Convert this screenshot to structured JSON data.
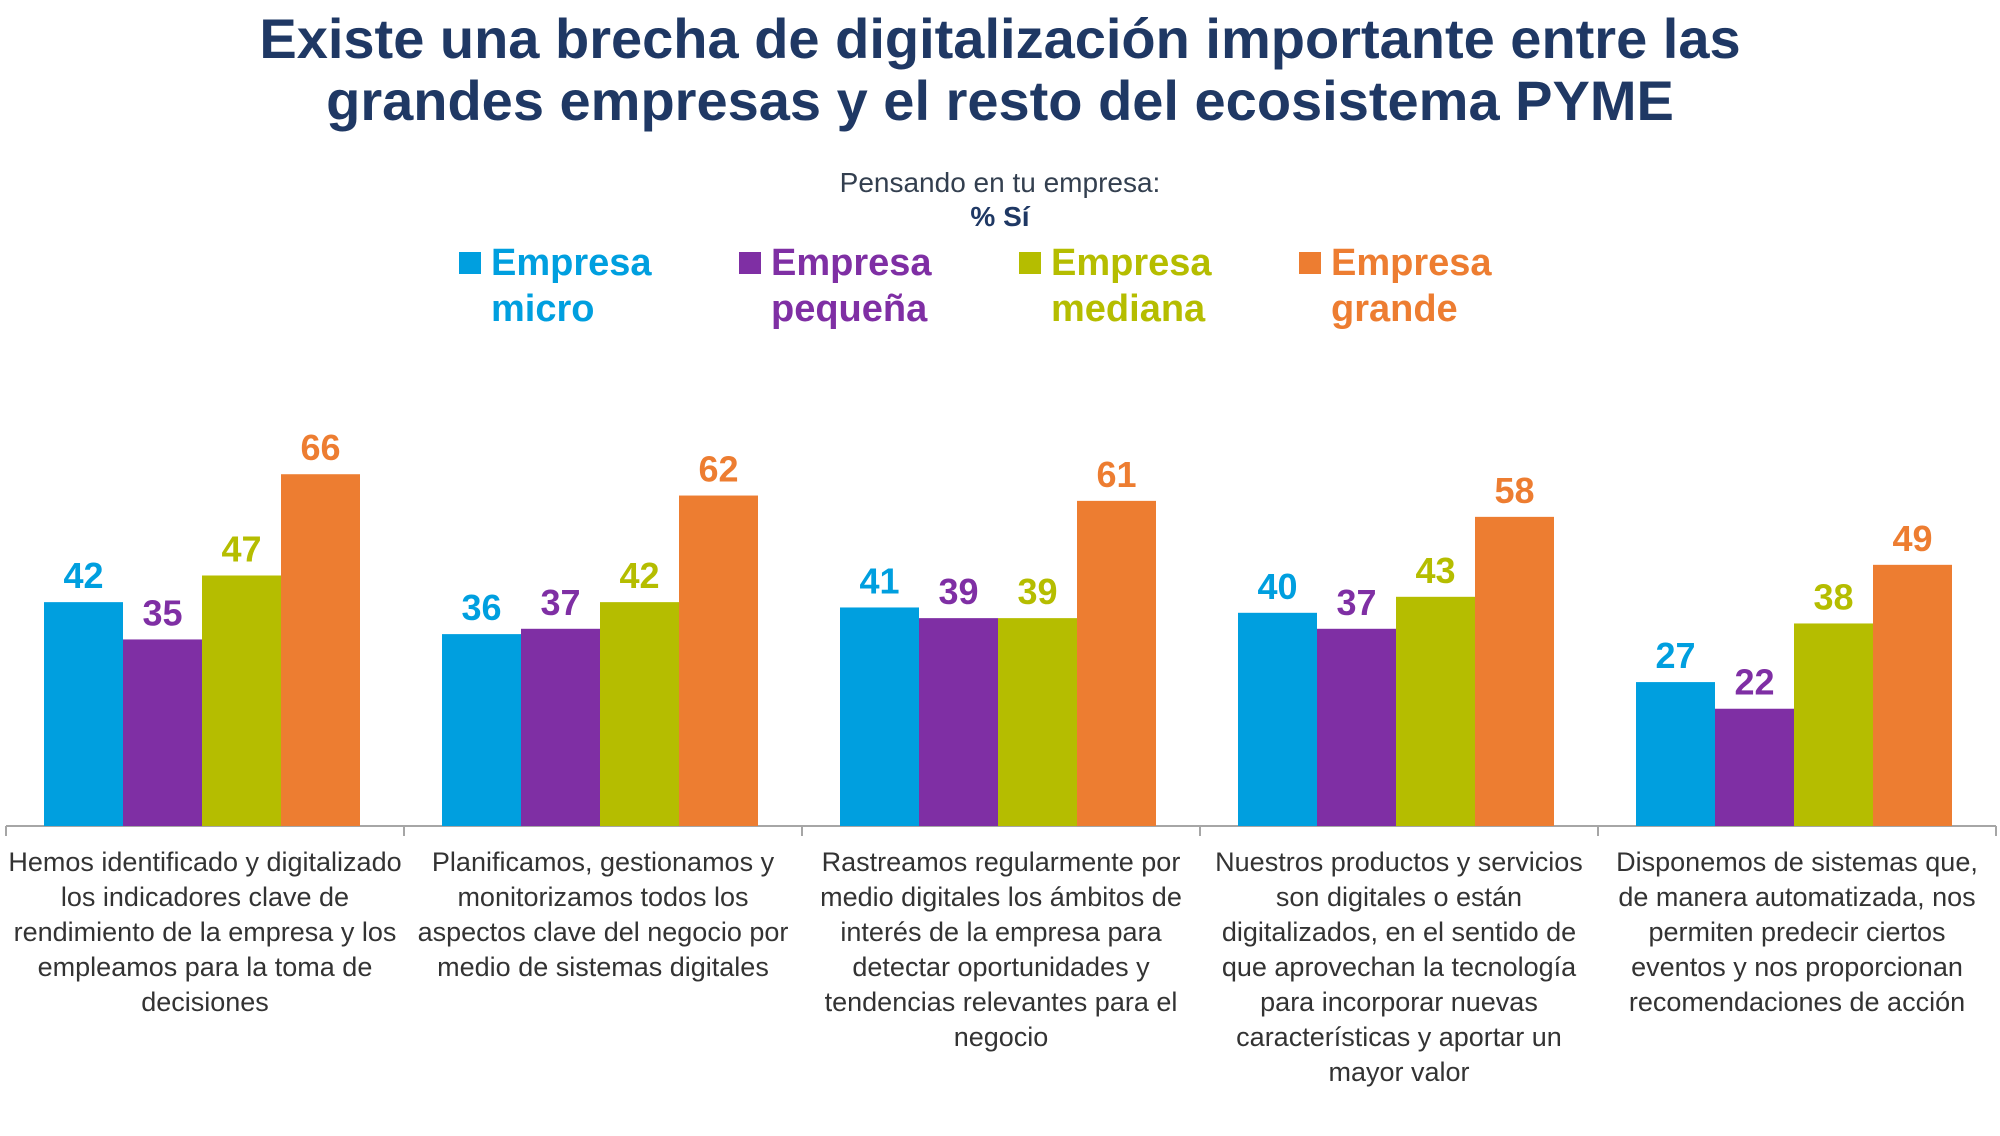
{
  "title_line1": "Existe una brecha de digitalización importante entre las",
  "title_line2": "grandes empresas y el resto del ecosistema PYME",
  "chart_data": {
    "type": "bar",
    "title": "Existe una brecha de digitalización importante entre las grandes empresas y el resto del ecosistema PYME",
    "subtitle": "Pensando en tu empresa:",
    "ylabel": "% Sí",
    "ylim": [
      0,
      70
    ],
    "grid": false,
    "legend_position": "top",
    "categories": [
      "Hemos identificado y digitalizado los indicadores clave de rendimiento de la empresa y los empleamos para la toma de decisiones",
      "Planificamos, gestionamos y monitorizamos todos los aspectos clave del negocio por medio de sistemas digitales",
      "Rastreamos regularmente por medio digitales los ámbitos de interés de la empresa para detectar oportunidades y tendencias relevantes para el negocio",
      "Nuestros productos y servicios son digitales o están digitalizados, en el sentido de que aprovechan la tecnología para incorporar nuevas características y aportar un mayor valor",
      "Disponemos de sistemas que, de manera automatizada, nos permiten predecir ciertos eventos y nos proporcionan recomendaciones de acción"
    ],
    "series": [
      {
        "name": "Empresa micro",
        "color": "#009fdf",
        "values": [
          42,
          36,
          41,
          40,
          27
        ]
      },
      {
        "name": "Empresa pequeña",
        "color": "#7f2fa4",
        "values": [
          35,
          37,
          39,
          37,
          22
        ]
      },
      {
        "name": "Empresa mediana",
        "color": "#b5bd00",
        "values": [
          47,
          42,
          39,
          43,
          38
        ]
      },
      {
        "name": "Empresa grande",
        "color": "#ed7d31",
        "values": [
          66,
          62,
          61,
          58,
          49
        ]
      }
    ]
  },
  "legend": [
    {
      "line1": "Empresa",
      "line2": "micro"
    },
    {
      "line1": "Empresa",
      "line2": "pequeña"
    },
    {
      "line1": "Empresa",
      "line2": "mediana"
    },
    {
      "line1": "Empresa",
      "line2": "grande"
    }
  ]
}
